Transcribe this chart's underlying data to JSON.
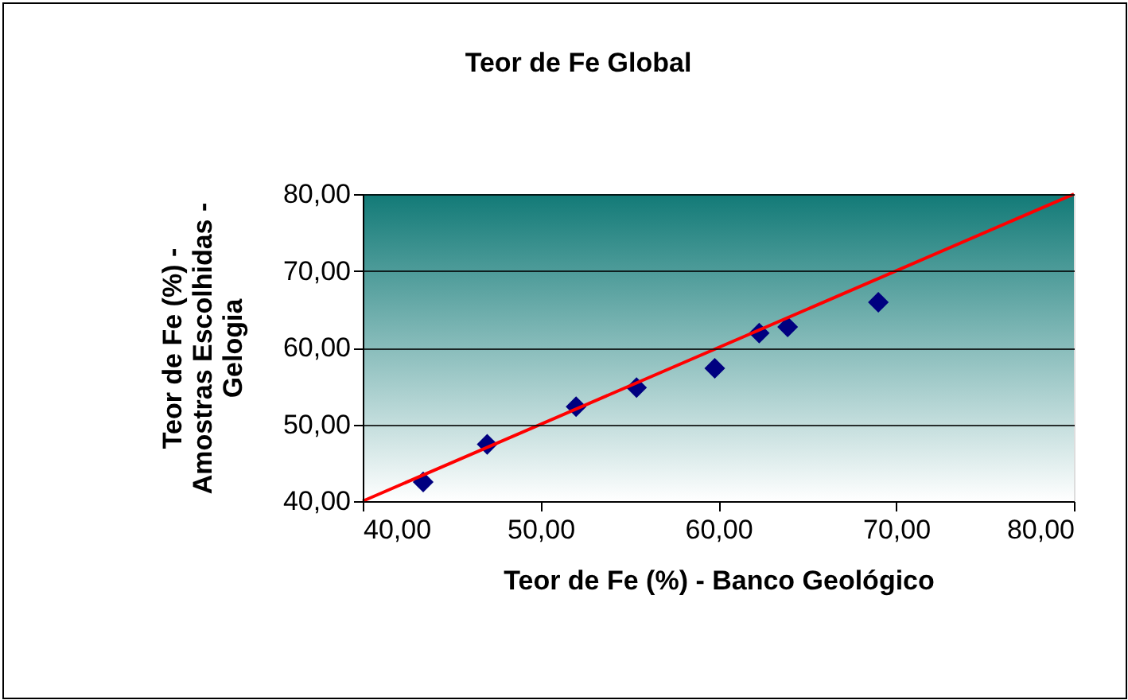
{
  "chart_data": {
    "type": "scatter",
    "title": "Teor de Fe Global",
    "xlabel": "Teor de Fe (%) - Banco Geológico",
    "ylabel": "Teor de Fe (%) -\nAmostras Escolhidas -\nGelogia",
    "series": [
      {
        "type": "scatter",
        "marker": "diamond",
        "color": "#000080",
        "x": [
          43.4,
          47.0,
          52.0,
          55.4,
          59.8,
          62.3,
          63.9,
          69.0
        ],
        "values": [
          42.5,
          47.4,
          52.3,
          54.8,
          57.3,
          61.9,
          62.7,
          65.9
        ]
      },
      {
        "type": "line",
        "marker": "none",
        "line_style": "solid",
        "color": "#ff0000",
        "x": [
          40,
          80
        ],
        "values": [
          40,
          80
        ]
      }
    ],
    "xlim": [
      40,
      80
    ],
    "ylim": [
      40,
      80
    ],
    "xticks": [
      {
        "value": 40,
        "label": "40,00"
      },
      {
        "value": 50,
        "label": "50,00"
      },
      {
        "value": 60,
        "label": "60,00"
      },
      {
        "value": 70,
        "label": "70,00"
      },
      {
        "value": 80,
        "label": "80,00"
      }
    ],
    "yticks": [
      {
        "value": 40,
        "label": "40,00"
      },
      {
        "value": 50,
        "label": "50,00"
      },
      {
        "value": 60,
        "label": "60,00"
      },
      {
        "value": 70,
        "label": "70,00"
      },
      {
        "value": 80,
        "label": "80,00"
      }
    ],
    "grid": "y"
  }
}
